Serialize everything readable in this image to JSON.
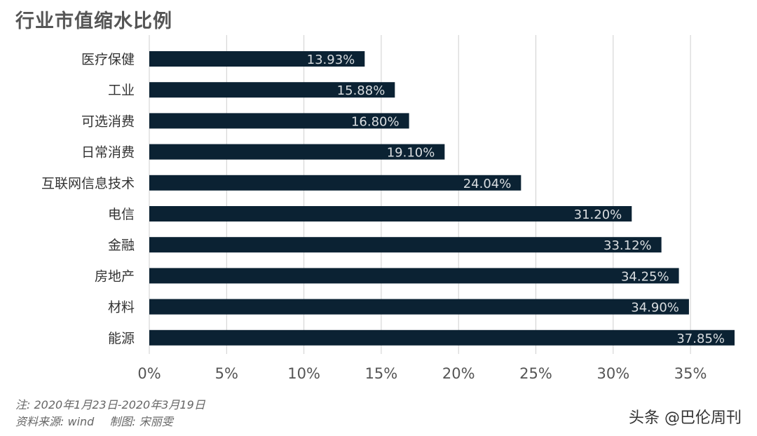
{
  "chart_data": {
    "type": "bar",
    "orientation": "horizontal",
    "title": "行业市值缩水比例",
    "categories": [
      "医疗保健",
      "工业",
      "可选消费",
      "日常消费",
      "互联网信息技术",
      "电信",
      "金融",
      "房地产",
      "材料",
      "能源"
    ],
    "values": [
      13.93,
      15.88,
      16.8,
      19.1,
      24.04,
      31.2,
      33.12,
      34.25,
      34.9,
      37.85
    ],
    "value_labels": [
      "13.93%",
      "15.88%",
      "16.80%",
      "19.10%",
      "24.04%",
      "31.20%",
      "33.12%",
      "34.25%",
      "34.90%",
      "37.85%"
    ],
    "x_ticks": [
      0,
      5,
      10,
      15,
      20,
      25,
      30,
      35
    ],
    "x_tick_labels": [
      "0%",
      "5%",
      "10%",
      "15%",
      "20%",
      "25%",
      "30%",
      "35%"
    ],
    "xlim": [
      0,
      37.85
    ],
    "xlabel": "",
    "ylabel": "",
    "grid": "vertical",
    "bar_color": "#0b2233",
    "label_color": "#d9dde0"
  },
  "footnote": {
    "note": "注: 2020年1月23日-2020年3月19日",
    "source": "资料来源: wind",
    "maker": "制图: 宋丽雯"
  },
  "watermark": "头条 @巴伦周刊"
}
